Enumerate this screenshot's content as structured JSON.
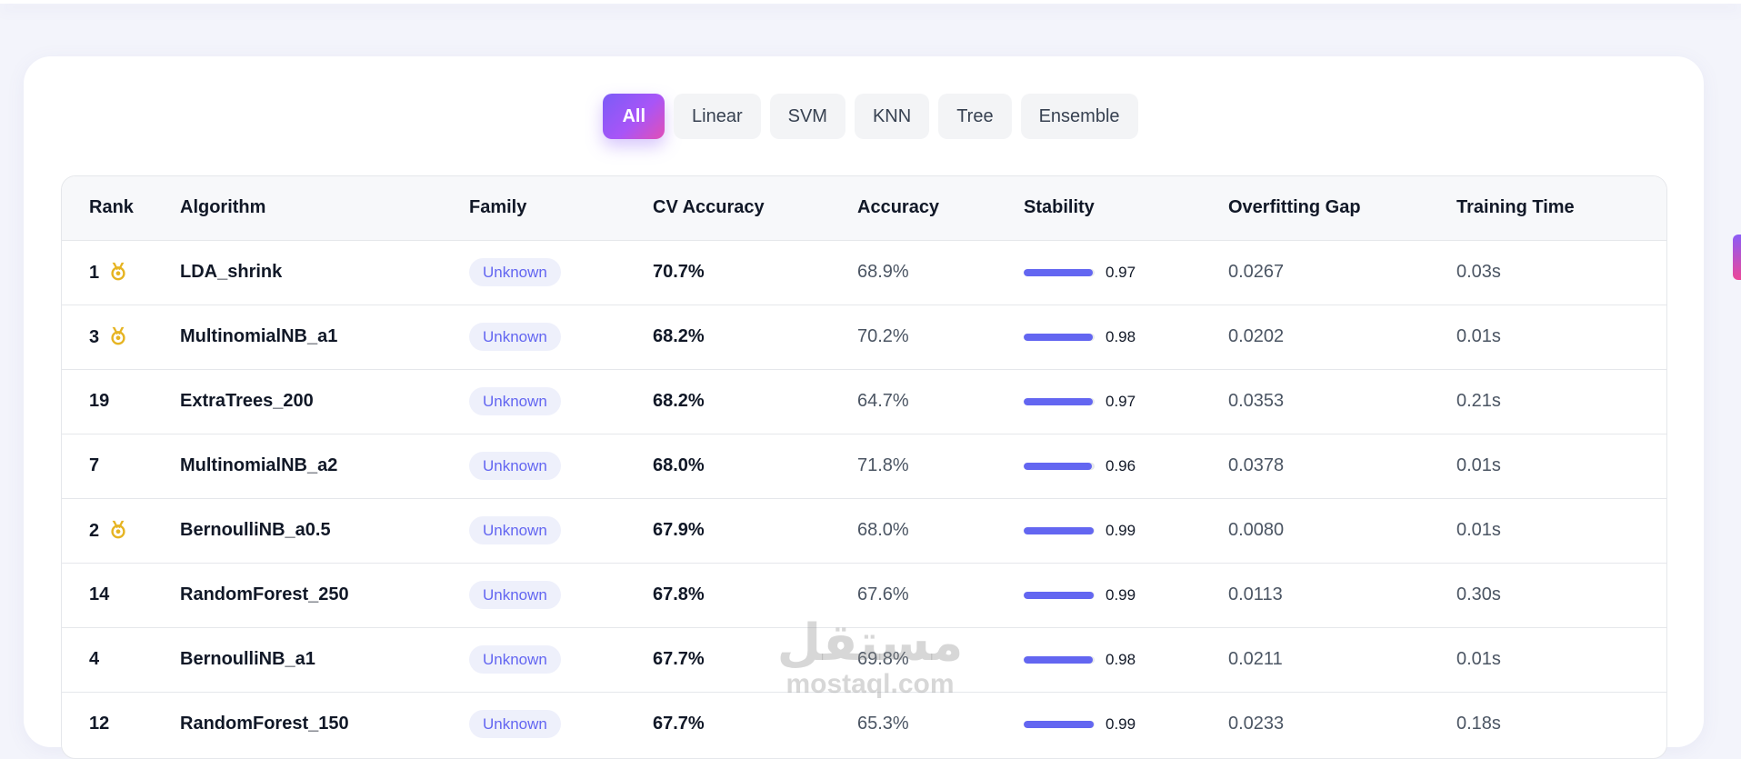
{
  "filters": [
    {
      "label": "All",
      "active": true
    },
    {
      "label": "Linear",
      "active": false
    },
    {
      "label": "SVM",
      "active": false
    },
    {
      "label": "KNN",
      "active": false
    },
    {
      "label": "Tree",
      "active": false
    },
    {
      "label": "Ensemble",
      "active": false
    }
  ],
  "table": {
    "headers": {
      "rank": "Rank",
      "algorithm": "Algorithm",
      "family": "Family",
      "cv_accuracy": "CV Accuracy",
      "accuracy": "Accuracy",
      "stability": "Stability",
      "overfitting_gap": "Overfitting Gap",
      "training_time": "Training Time"
    },
    "rows": [
      {
        "rank": "1",
        "medal": true,
        "algorithm": "LDA_shrink",
        "family": "Unknown",
        "cv_accuracy": "70.7%",
        "accuracy": "68.9%",
        "stability": "0.97",
        "stability_level": 0.97,
        "overfitting_gap": "0.0267",
        "training_time": "0.03s"
      },
      {
        "rank": "3",
        "medal": true,
        "algorithm": "MultinomialNB_a1",
        "family": "Unknown",
        "cv_accuracy": "68.2%",
        "accuracy": "70.2%",
        "stability": "0.98",
        "stability_level": 0.98,
        "overfitting_gap": "0.0202",
        "training_time": "0.01s"
      },
      {
        "rank": "19",
        "medal": false,
        "algorithm": "ExtraTrees_200",
        "family": "Unknown",
        "cv_accuracy": "68.2%",
        "accuracy": "64.7%",
        "stability": "0.97",
        "stability_level": 0.97,
        "overfitting_gap": "0.0353",
        "training_time": "0.21s"
      },
      {
        "rank": "7",
        "medal": false,
        "algorithm": "MultinomialNB_a2",
        "family": "Unknown",
        "cv_accuracy": "68.0%",
        "accuracy": "71.8%",
        "stability": "0.96",
        "stability_level": 0.96,
        "overfitting_gap": "0.0378",
        "training_time": "0.01s"
      },
      {
        "rank": "2",
        "medal": true,
        "algorithm": "BernoulliNB_a0.5",
        "family": "Unknown",
        "cv_accuracy": "67.9%",
        "accuracy": "68.0%",
        "stability": "0.99",
        "stability_level": 0.99,
        "overfitting_gap": "0.0080",
        "training_time": "0.01s"
      },
      {
        "rank": "14",
        "medal": false,
        "algorithm": "RandomForest_250",
        "family": "Unknown",
        "cv_accuracy": "67.8%",
        "accuracy": "67.6%",
        "stability": "0.99",
        "stability_level": 0.99,
        "overfitting_gap": "0.0113",
        "training_time": "0.30s"
      },
      {
        "rank": "4",
        "medal": false,
        "algorithm": "BernoulliNB_a1",
        "family": "Unknown",
        "cv_accuracy": "67.7%",
        "accuracy": "69.8%",
        "stability": "0.98",
        "stability_level": 0.98,
        "overfitting_gap": "0.0211",
        "training_time": "0.01s"
      },
      {
        "rank": "12",
        "medal": false,
        "algorithm": "RandomForest_150",
        "family": "Unknown",
        "cv_accuracy": "67.7%",
        "accuracy": "65.3%",
        "stability": "0.99",
        "stability_level": 0.99,
        "overfitting_gap": "0.0233",
        "training_time": "0.18s"
      }
    ]
  },
  "watermark": {
    "arabic": "مستقل",
    "latin": "mostaql.com"
  },
  "colors": {
    "accent": "#6366f1",
    "medal": "#e6b422",
    "gradient_start": "#7b5cf7",
    "gradient_end": "#e24fb6"
  }
}
